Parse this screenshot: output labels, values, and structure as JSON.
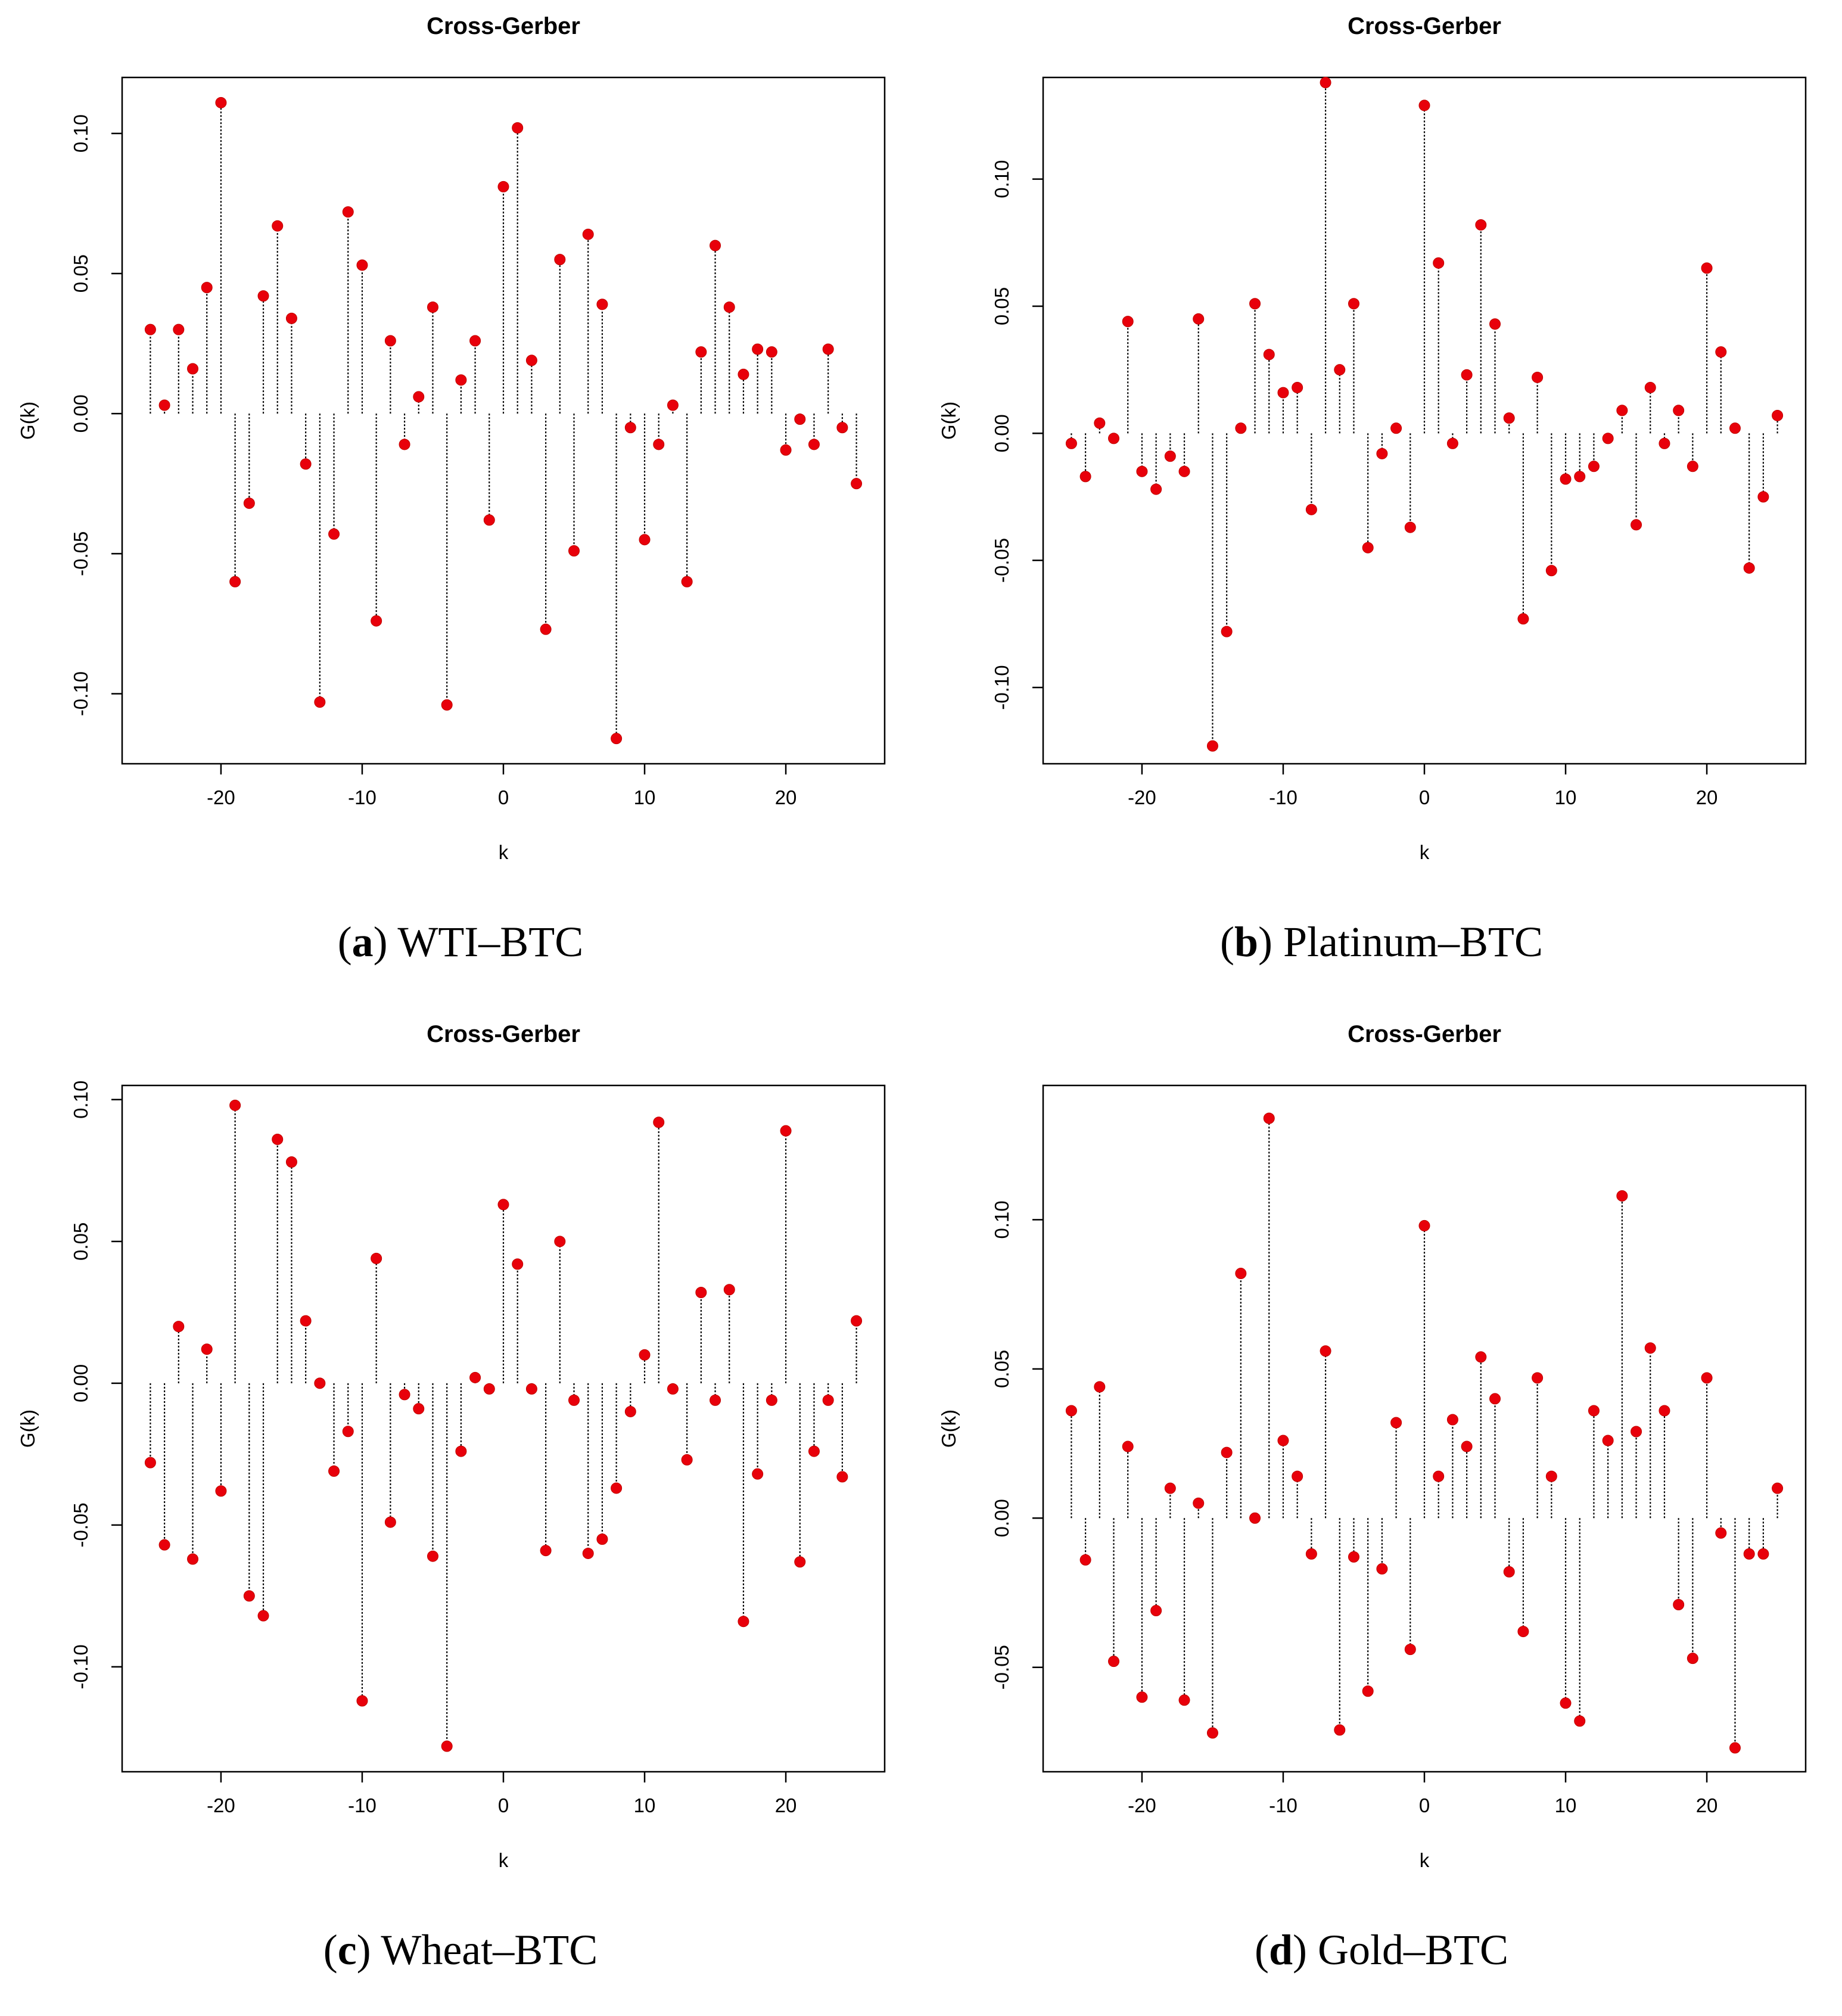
{
  "chart_data": [
    {
      "type": "scatter",
      "title": "Cross-Gerber",
      "xlabel": "k",
      "ylabel": "G(k)",
      "xlim": [
        -27,
        27
      ],
      "ylim": [
        -0.125,
        0.12
      ],
      "xticks": [
        -20,
        -10,
        0,
        10,
        20
      ],
      "xtick_labels": [
        "-20",
        "-10",
        "0",
        "10",
        "20"
      ],
      "yticks": [
        -0.1,
        -0.05,
        0.0,
        0.05,
        0.1
      ],
      "ytick_labels": [
        "-0.10",
        "-0.05",
        "0.00",
        "0.05",
        "0.10"
      ],
      "x": [
        -25,
        -24,
        -23,
        -22,
        -21,
        -20,
        -19,
        -18,
        -17,
        -16,
        -15,
        -14,
        -13,
        -12,
        -11,
        -10,
        -9,
        -8,
        -7,
        -6,
        -5,
        -4,
        -3,
        -2,
        -1,
        0,
        1,
        2,
        3,
        4,
        5,
        6,
        7,
        8,
        9,
        10,
        11,
        12,
        13,
        14,
        15,
        16,
        17,
        18,
        19,
        20,
        21,
        22,
        23,
        24,
        25
      ],
      "values": [
        0.03,
        0.003,
        0.03,
        0.016,
        0.045,
        0.111,
        -0.06,
        -0.032,
        0.042,
        0.067,
        0.034,
        -0.018,
        -0.103,
        -0.043,
        0.072,
        0.053,
        -0.074,
        0.026,
        -0.011,
        0.006,
        0.038,
        -0.104,
        0.012,
        0.026,
        -0.038,
        0.081,
        0.102,
        0.019,
        -0.077,
        0.055,
        -0.049,
        0.064,
        0.039,
        -0.116,
        -0.005,
        -0.045,
        -0.011,
        0.003,
        -0.06,
        0.022,
        0.06,
        0.038,
        0.014,
        0.023,
        0.022,
        -0.013,
        -0.002,
        -0.011,
        0.023,
        -0.005,
        -0.025
      ],
      "caption_letter": "a",
      "caption_text": " WTI–BTC"
    },
    {
      "type": "scatter",
      "title": "Cross-Gerber",
      "xlabel": "k",
      "ylabel": "G(k)",
      "xlim": [
        -27,
        27
      ],
      "ylim": [
        -0.13,
        0.14
      ],
      "xticks": [
        -20,
        -10,
        0,
        10,
        20
      ],
      "xtick_labels": [
        "-20",
        "-10",
        "0",
        "10",
        "20"
      ],
      "yticks": [
        -0.1,
        -0.05,
        0.0,
        0.05,
        0.1
      ],
      "ytick_labels": [
        "-0.10",
        "-0.05",
        "0.00",
        "0.05",
        "0.10"
      ],
      "x": [
        -25,
        -24,
        -23,
        -22,
        -21,
        -20,
        -19,
        -18,
        -17,
        -16,
        -15,
        -14,
        -13,
        -12,
        -11,
        -10,
        -9,
        -8,
        -7,
        -6,
        -5,
        -4,
        -3,
        -2,
        -1,
        0,
        1,
        2,
        3,
        4,
        5,
        6,
        7,
        8,
        9,
        10,
        11,
        12,
        13,
        14,
        15,
        16,
        17,
        18,
        19,
        20,
        21,
        22,
        23,
        24,
        25
      ],
      "values": [
        -0.004,
        -0.017,
        0.004,
        -0.002,
        0.044,
        -0.015,
        -0.022,
        -0.009,
        -0.015,
        0.045,
        -0.123,
        -0.078,
        0.002,
        0.051,
        0.031,
        0.016,
        0.018,
        -0.03,
        0.138,
        0.025,
        0.051,
        -0.045,
        -0.008,
        0.002,
        -0.037,
        0.129,
        0.067,
        -0.004,
        0.023,
        0.082,
        0.043,
        0.006,
        -0.073,
        0.022,
        -0.054,
        -0.018,
        -0.017,
        -0.013,
        -0.002,
        0.009,
        -0.036,
        0.018,
        -0.004,
        0.009,
        -0.013,
        0.065,
        0.032,
        0.002,
        -0.053,
        -0.025,
        0.007
      ],
      "caption_letter": "b",
      "caption_text": " Platinum–BTC"
    },
    {
      "type": "scatter",
      "title": "Cross-Gerber",
      "xlabel": "k",
      "ylabel": "G(k)",
      "xlim": [
        -27,
        27
      ],
      "ylim": [
        -0.137,
        0.105
      ],
      "xticks": [
        -20,
        -10,
        0,
        10,
        20
      ],
      "xtick_labels": [
        "-20",
        "-10",
        "0",
        "10",
        "20"
      ],
      "yticks": [
        -0.1,
        -0.05,
        0.0,
        0.05,
        0.1
      ],
      "ytick_labels": [
        "-0.10",
        "-0.05",
        "0.00",
        "0.05",
        "0.10"
      ],
      "x": [
        -25,
        -24,
        -23,
        -22,
        -21,
        -20,
        -19,
        -18,
        -17,
        -16,
        -15,
        -14,
        -13,
        -12,
        -11,
        -10,
        -9,
        -8,
        -7,
        -6,
        -5,
        -4,
        -3,
        -2,
        -1,
        0,
        1,
        2,
        3,
        4,
        5,
        6,
        7,
        8,
        9,
        10,
        11,
        12,
        13,
        14,
        15,
        16,
        17,
        18,
        19,
        20,
        21,
        22,
        23,
        24,
        25
      ],
      "values": [
        -0.028,
        -0.057,
        0.02,
        -0.062,
        0.012,
        -0.038,
        0.098,
        -0.075,
        -0.082,
        0.086,
        0.078,
        0.022,
        0.0,
        -0.031,
        -0.017,
        -0.112,
        0.044,
        -0.049,
        -0.004,
        -0.009,
        -0.061,
        -0.128,
        -0.024,
        0.002,
        -0.002,
        0.063,
        0.042,
        -0.002,
        -0.059,
        0.05,
        -0.006,
        -0.06,
        -0.055,
        -0.037,
        -0.01,
        0.01,
        0.092,
        -0.002,
        -0.027,
        0.032,
        -0.006,
        0.033,
        -0.084,
        -0.032,
        -0.006,
        0.089,
        -0.063,
        -0.024,
        -0.006,
        -0.033,
        0.022
      ],
      "caption_letter": "c",
      "caption_text": " Wheat–BTC"
    },
    {
      "type": "scatter",
      "title": "Cross-Gerber",
      "xlabel": "k",
      "ylabel": "G(k)",
      "xlim": [
        -27,
        27
      ],
      "ylim": [
        -0.085,
        0.145
      ],
      "xticks": [
        -20,
        -10,
        0,
        10,
        20
      ],
      "xtick_labels": [
        "-20",
        "-10",
        "0",
        "10",
        "20"
      ],
      "yticks": [
        -0.05,
        0.0,
        0.05,
        0.1
      ],
      "ytick_labels": [
        "-0.05",
        "0.00",
        "0.05",
        "0.10"
      ],
      "x": [
        -25,
        -24,
        -23,
        -22,
        -21,
        -20,
        -19,
        -18,
        -17,
        -16,
        -15,
        -14,
        -13,
        -12,
        -11,
        -10,
        -9,
        -8,
        -7,
        -6,
        -5,
        -4,
        -3,
        -2,
        -1,
        0,
        1,
        2,
        3,
        4,
        5,
        6,
        7,
        8,
        9,
        10,
        11,
        12,
        13,
        14,
        15,
        16,
        17,
        18,
        19,
        20,
        21,
        22,
        23,
        24,
        25
      ],
      "values": [
        0.036,
        -0.014,
        0.044,
        -0.048,
        0.024,
        -0.06,
        -0.031,
        0.01,
        -0.061,
        0.005,
        -0.072,
        0.022,
        0.082,
        0.0,
        0.134,
        0.026,
        0.014,
        -0.012,
        0.056,
        -0.071,
        -0.013,
        -0.058,
        -0.017,
        0.032,
        -0.044,
        0.098,
        0.014,
        0.033,
        0.024,
        0.054,
        0.04,
        -0.018,
        -0.038,
        0.047,
        0.014,
        -0.062,
        -0.068,
        0.036,
        0.026,
        0.108,
        0.029,
        0.057,
        0.036,
        -0.029,
        -0.047,
        0.047,
        -0.005,
        -0.077,
        -0.012,
        -0.012,
        0.01
      ],
      "caption_letter": "d",
      "caption_text": " Gold–BTC"
    }
  ]
}
